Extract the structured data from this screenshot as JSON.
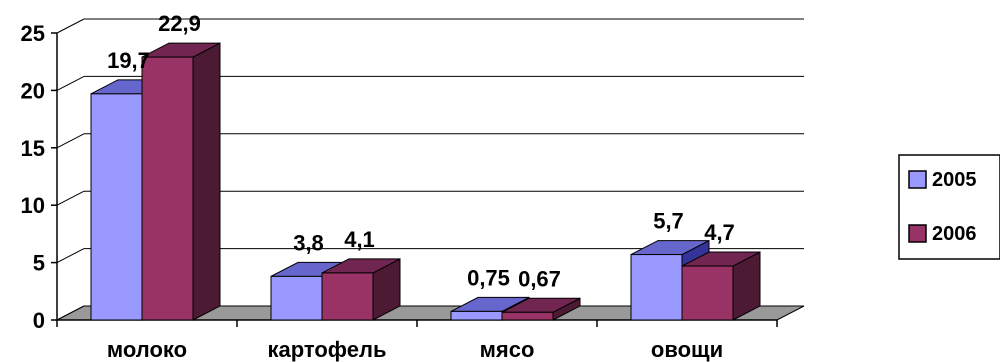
{
  "chart_data": {
    "type": "bar",
    "title": "",
    "xlabel": "",
    "ylabel": "",
    "categories": [
      "молоко",
      "картофель",
      "мясо",
      "овощи"
    ],
    "series": [
      {
        "name": "2005",
        "values": [
          19.7,
          3.8,
          0.75,
          5.7
        ],
        "labels": [
          "19,7",
          "3,8",
          "0,75",
          "5,7"
        ],
        "color": "#9999ff"
      },
      {
        "name": "2006",
        "values": [
          22.9,
          4.1,
          0.67,
          4.7
        ],
        "labels": [
          "22,9",
          "4,1",
          "0,67",
          "4,7"
        ],
        "color": "#993366"
      }
    ],
    "ylim": [
      0,
      25
    ],
    "yticks": [
      "0",
      "5",
      "10",
      "15",
      "20",
      "25"
    ],
    "grid": true,
    "style": "3d-clustered-column",
    "legend_position": "right"
  }
}
